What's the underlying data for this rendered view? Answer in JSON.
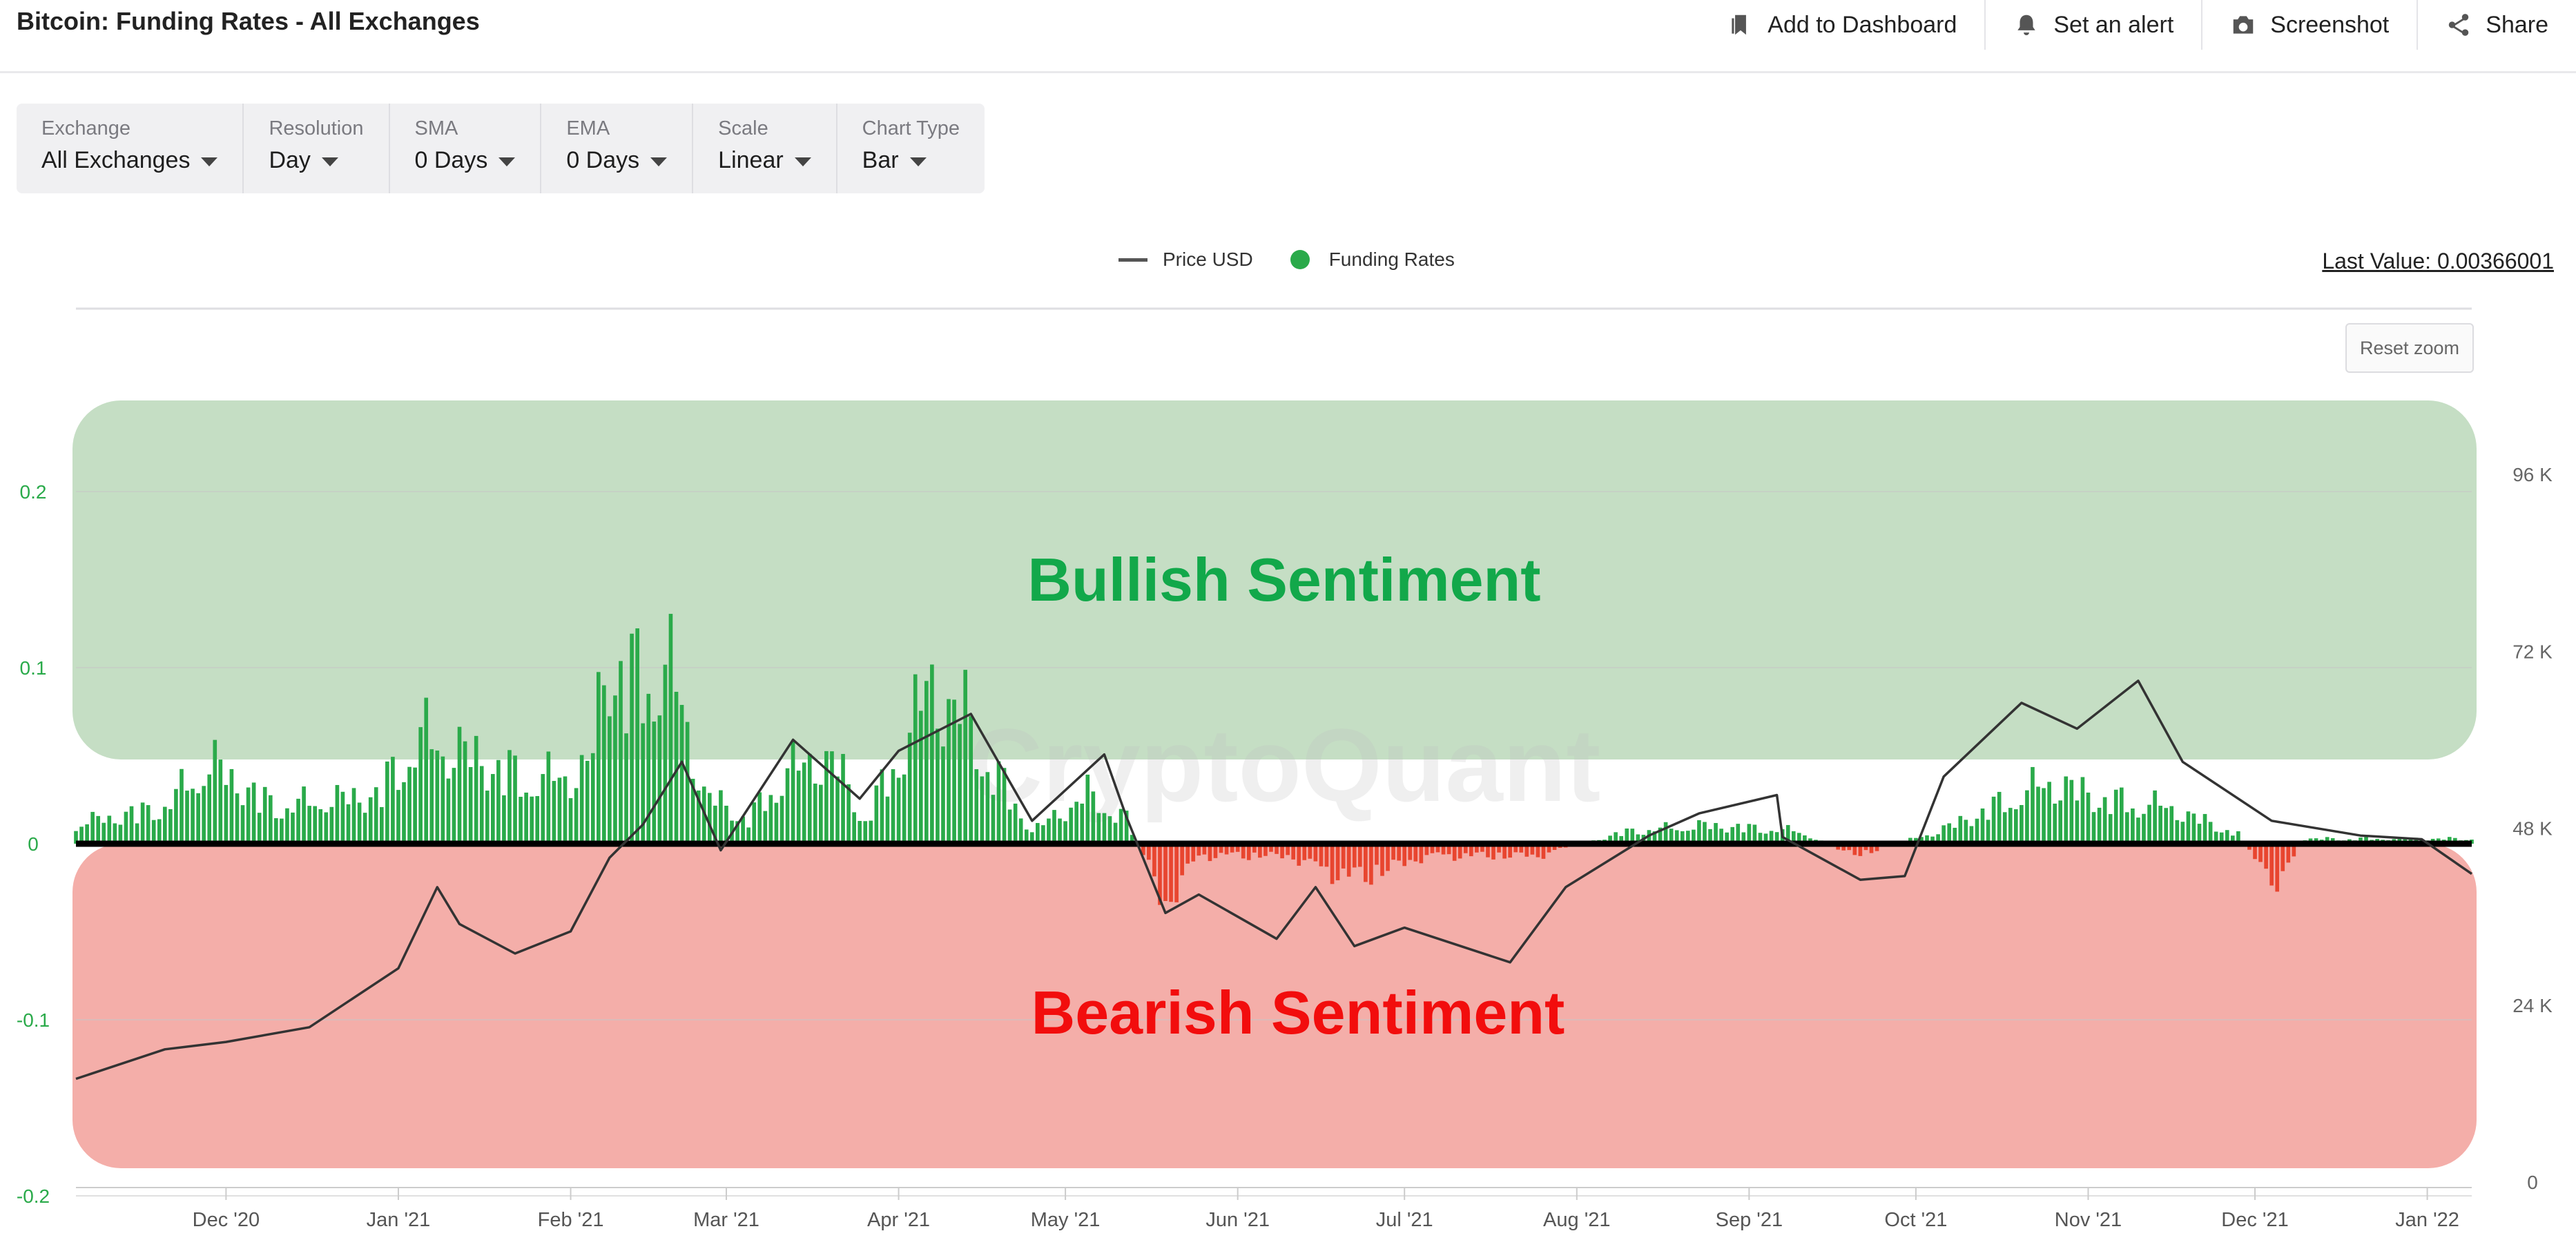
{
  "page": {
    "title": "Bitcoin: Funding Rates - All Exchanges",
    "actions": [
      {
        "label": "Add to Dashboard",
        "icon": "bookmark-icon"
      },
      {
        "label": "Set an alert",
        "icon": "bell-icon"
      },
      {
        "label": "Screenshot",
        "icon": "camera-icon"
      },
      {
        "label": "Share",
        "icon": "share-icon"
      }
    ]
  },
  "filters": [
    {
      "label": "Exchange",
      "value": "All Exchanges"
    },
    {
      "label": "Resolution",
      "value": "Day"
    },
    {
      "label": "SMA",
      "value": "0 Days"
    },
    {
      "label": "EMA",
      "value": "0 Days"
    },
    {
      "label": "Scale",
      "value": "Linear"
    },
    {
      "label": "Chart Type",
      "value": "Bar"
    }
  ],
  "controls": {
    "last_value": "Last Value: 0.00366001",
    "reset_zoom": "Reset zoom"
  },
  "watermark": "CryptoQuant",
  "colors": {
    "positive_bar": "#2aaa4a",
    "negative_bar": "#e8452f",
    "price_line": "#333333",
    "bullish_zone": "#c5dec4",
    "bearish_zone": "#f4aea9",
    "bullish_text": "#12a84a",
    "bearish_text": "#f20d0d"
  },
  "chart_data": {
    "type": "bar",
    "legend": [
      "Price USD",
      "Funding Rates"
    ],
    "legend_position": "top-center",
    "grid": true,
    "annotations": [
      "Bullish Sentiment",
      "Bearish Sentiment"
    ],
    "x_ticks": [
      "Dec '20",
      "Jan '21",
      "Feb '21",
      "Mar '21",
      "Apr '21",
      "May '21",
      "Jun '21",
      "Jul '21",
      "Aug '21",
      "Sep '21",
      "Oct '21",
      "Nov '21",
      "Dec '21",
      "Jan '22"
    ],
    "x_range": [
      "2020-11-04",
      "2022-01-09"
    ],
    "y_left": {
      "ticks": [
        "0.2",
        "0.1",
        "0",
        "-0.1",
        "-0.2"
      ],
      "range": [
        -0.2,
        0.2
      ]
    },
    "y_right": {
      "ticks": [
        "96 K",
        "72 K",
        "48 K",
        "24 K",
        "0"
      ],
      "range": [
        0,
        96000
      ]
    },
    "series": [
      {
        "name": "Funding Rates",
        "type": "bar",
        "anchors": [
          [
            "2020-11-04",
            0.016
          ],
          [
            "2020-11-20",
            0.03
          ],
          [
            "2020-11-28",
            0.065
          ],
          [
            "2020-12-10",
            0.03
          ],
          [
            "2020-12-28",
            0.04
          ],
          [
            "2021-01-05",
            0.085
          ],
          [
            "2021-01-15",
            0.07
          ],
          [
            "2021-01-25",
            0.05
          ],
          [
            "2021-02-04",
            0.06
          ],
          [
            "2021-02-08",
            0.155
          ],
          [
            "2021-02-12",
            0.13
          ],
          [
            "2021-02-16",
            0.145
          ],
          [
            "2021-02-20",
            0.13
          ],
          [
            "2021-02-25",
            0.04
          ],
          [
            "2021-03-05",
            0.02
          ],
          [
            "2021-03-12",
            0.06
          ],
          [
            "2021-03-20",
            0.07
          ],
          [
            "2021-03-26",
            0.02
          ],
          [
            "2021-04-01",
            0.07
          ],
          [
            "2021-04-06",
            0.125
          ],
          [
            "2021-04-12",
            0.11
          ],
          [
            "2021-04-18",
            0.06
          ],
          [
            "2021-04-25",
            0.01
          ],
          [
            "2021-05-05",
            0.04
          ],
          [
            "2021-05-12",
            0.02
          ],
          [
            "2021-05-19",
            -0.05
          ],
          [
            "2021-05-25",
            -0.01
          ],
          [
            "2021-06-10",
            -0.01
          ],
          [
            "2021-06-22",
            -0.03
          ],
          [
            "2021-07-05",
            -0.01
          ],
          [
            "2021-07-25",
            -0.01
          ],
          [
            "2021-08-10",
            0.01
          ],
          [
            "2021-08-25",
            0.015
          ],
          [
            "2021-09-10",
            0.01
          ],
          [
            "2021-09-20",
            -0.01
          ],
          [
            "2021-10-05",
            0.01
          ],
          [
            "2021-10-15",
            0.03
          ],
          [
            "2021-10-25",
            0.05
          ],
          [
            "2021-11-05",
            0.035
          ],
          [
            "2021-11-15",
            0.03
          ],
          [
            "2021-11-28",
            0.008
          ],
          [
            "2021-12-04",
            -0.035
          ],
          [
            "2021-12-10",
            0.004
          ],
          [
            "2022-01-09",
            0.004
          ]
        ]
      },
      {
        "name": "Price USD",
        "type": "line",
        "axis": "right",
        "points": [
          [
            "2020-11-04",
            14000
          ],
          [
            "2020-11-20",
            18000
          ],
          [
            "2020-12-01",
            19000
          ],
          [
            "2020-12-16",
            21000
          ],
          [
            "2021-01-01",
            29000
          ],
          [
            "2021-01-08",
            40000
          ],
          [
            "2021-01-12",
            35000
          ],
          [
            "2021-01-22",
            31000
          ],
          [
            "2021-02-01",
            34000
          ],
          [
            "2021-02-08",
            44000
          ],
          [
            "2021-02-14",
            48500
          ],
          [
            "2021-02-21",
            57000
          ],
          [
            "2021-02-28",
            45000
          ],
          [
            "2021-03-13",
            60000
          ],
          [
            "2021-03-25",
            52000
          ],
          [
            "2021-04-01",
            58500
          ],
          [
            "2021-04-14",
            63500
          ],
          [
            "2021-04-25",
            49000
          ],
          [
            "2021-05-08",
            58000
          ],
          [
            "2021-05-12",
            49500
          ],
          [
            "2021-05-19",
            36500
          ],
          [
            "2021-05-25",
            39000
          ],
          [
            "2021-06-08",
            33000
          ],
          [
            "2021-06-15",
            40000
          ],
          [
            "2021-06-22",
            32000
          ],
          [
            "2021-07-01",
            34500
          ],
          [
            "2021-07-20",
            29800
          ],
          [
            "2021-07-30",
            40000
          ],
          [
            "2021-08-14",
            47000
          ],
          [
            "2021-08-23",
            50000
          ],
          [
            "2021-09-06",
            52500
          ],
          [
            "2021-09-07",
            46800
          ],
          [
            "2021-09-21",
            41000
          ],
          [
            "2021-09-29",
            41500
          ],
          [
            "2021-10-06",
            55000
          ],
          [
            "2021-10-20",
            65000
          ],
          [
            "2021-10-30",
            61500
          ],
          [
            "2021-11-10",
            68000
          ],
          [
            "2021-11-18",
            57000
          ],
          [
            "2021-12-04",
            49000
          ],
          [
            "2021-12-20",
            47000
          ],
          [
            "2021-12-31",
            46500
          ],
          [
            "2022-01-09",
            41800
          ]
        ]
      }
    ]
  }
}
